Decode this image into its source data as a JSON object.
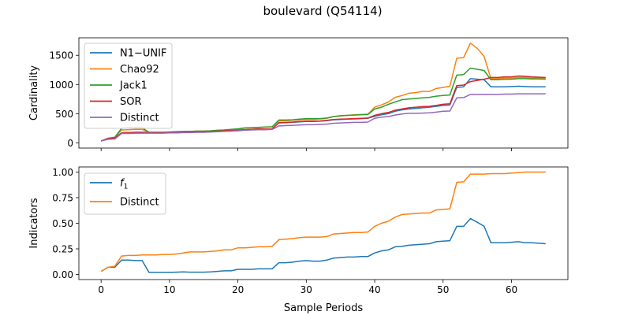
{
  "figure_title": "boulevard (Q54114)",
  "chart_data": [
    {
      "type": "line",
      "xlabel": "",
      "ylabel": "Cardinality",
      "xlim": [
        -3.25,
        68.25
      ],
      "ylim": [
        -90,
        1800
      ],
      "xticks": [
        0,
        10,
        20,
        30,
        40,
        50,
        60
      ],
      "xtick_labels_visible": false,
      "yticks": [
        0,
        500,
        1000,
        1500
      ],
      "ytick_labels": [
        "0",
        "500",
        "1000",
        "1500"
      ],
      "grid": false,
      "legend_position": "upper-left",
      "x": [
        0,
        1,
        2,
        3,
        4,
        5,
        6,
        7,
        8,
        9,
        10,
        11,
        12,
        13,
        14,
        15,
        16,
        17,
        18,
        19,
        20,
        21,
        22,
        23,
        24,
        25,
        26,
        27,
        28,
        29,
        30,
        31,
        32,
        33,
        34,
        35,
        36,
        37,
        38,
        39,
        40,
        41,
        42,
        43,
        44,
        45,
        46,
        47,
        48,
        49,
        50,
        51,
        52,
        53,
        54,
        55,
        56,
        57,
        58,
        59,
        60,
        61,
        62,
        63,
        64,
        65
      ],
      "series": [
        {
          "name": "N1−UNIF",
          "color": "#1f77b4",
          "values": [
            30,
            70,
            80,
            170,
            175,
            180,
            180,
            175,
            175,
            175,
            180,
            180,
            185,
            185,
            190,
            190,
            195,
            200,
            205,
            210,
            215,
            225,
            230,
            235,
            235,
            240,
            340,
            345,
            350,
            360,
            365,
            365,
            370,
            380,
            395,
            400,
            405,
            410,
            415,
            420,
            455,
            480,
            500,
            540,
            565,
            580,
            590,
            600,
            610,
            625,
            640,
            650,
            950,
            960,
            1100,
            1090,
            1080,
            960,
            960,
            960,
            965,
            970,
            965,
            960,
            960,
            960
          ]
        },
        {
          "name": "Chao92",
          "color": "#ff7f0e",
          "values": [
            30,
            80,
            90,
            220,
            225,
            230,
            230,
            180,
            180,
            180,
            180,
            190,
            190,
            195,
            200,
            200,
            205,
            210,
            215,
            220,
            230,
            250,
            255,
            260,
            270,
            275,
            375,
            380,
            385,
            395,
            400,
            400,
            410,
            420,
            450,
            460,
            470,
            480,
            485,
            490,
            610,
            650,
            700,
            780,
            810,
            850,
            860,
            880,
            880,
            930,
            950,
            970,
            1450,
            1460,
            1710,
            1620,
            1480,
            1100,
            1100,
            1110,
            1110,
            1120,
            1120,
            1110,
            1110,
            1100
          ]
        },
        {
          "name": "Jack1",
          "color": "#2ca02c",
          "values": [
            30,
            75,
            95,
            250,
            255,
            260,
            260,
            180,
            180,
            180,
            185,
            190,
            195,
            195,
            200,
            200,
            205,
            215,
            220,
            230,
            240,
            255,
            260,
            265,
            270,
            275,
            390,
            390,
            395,
            405,
            415,
            415,
            415,
            425,
            450,
            465,
            470,
            475,
            480,
            485,
            580,
            610,
            660,
            700,
            740,
            750,
            760,
            770,
            780,
            800,
            810,
            820,
            1160,
            1170,
            1280,
            1260,
            1240,
            1080,
            1080,
            1090,
            1090,
            1100,
            1100,
            1095,
            1095,
            1090
          ]
        },
        {
          "name": "SOR",
          "color": "#d62728",
          "values": [
            30,
            70,
            80,
            170,
            175,
            180,
            180,
            175,
            175,
            175,
            180,
            180,
            185,
            185,
            190,
            190,
            195,
            200,
            205,
            210,
            215,
            225,
            230,
            235,
            235,
            240,
            345,
            350,
            355,
            365,
            370,
            370,
            375,
            385,
            400,
            405,
            410,
            415,
            420,
            425,
            470,
            500,
            520,
            560,
            580,
            600,
            610,
            620,
            625,
            640,
            660,
            670,
            980,
            990,
            1050,
            1070,
            1090,
            1120,
            1120,
            1130,
            1130,
            1145,
            1140,
            1130,
            1125,
            1120
          ]
        },
        {
          "name": "Distinct",
          "color": "#9467bd",
          "values": [
            30,
            60,
            65,
            160,
            160,
            165,
            165,
            165,
            165,
            165,
            170,
            170,
            175,
            175,
            180,
            180,
            185,
            190,
            195,
            200,
            205,
            215,
            220,
            225,
            225,
            230,
            290,
            295,
            300,
            305,
            310,
            310,
            315,
            320,
            335,
            340,
            345,
            350,
            350,
            355,
            420,
            440,
            450,
            475,
            495,
            505,
            505,
            510,
            515,
            525,
            540,
            545,
            770,
            775,
            830,
            830,
            830,
            830,
            830,
            835,
            835,
            840,
            840,
            840,
            840,
            840
          ]
        }
      ]
    },
    {
      "type": "line",
      "xlabel": "Sample Periods",
      "ylabel": "Indicators",
      "xlim": [
        -3.25,
        68.25
      ],
      "ylim": [
        -0.05,
        1.05
      ],
      "xticks": [
        0,
        10,
        20,
        30,
        40,
        50,
        60
      ],
      "xtick_labels": [
        "0",
        "10",
        "20",
        "30",
        "40",
        "50",
        "60"
      ],
      "yticks": [
        0,
        0.25,
        0.5,
        0.75,
        1.0
      ],
      "ytick_labels": [
        "0.00",
        "0.25",
        "0.50",
        "0.75",
        "1.00"
      ],
      "grid": false,
      "legend_position": "upper-left",
      "x": [
        0,
        1,
        2,
        3,
        4,
        5,
        6,
        7,
        8,
        9,
        10,
        11,
        12,
        13,
        14,
        15,
        16,
        17,
        18,
        19,
        20,
        21,
        22,
        23,
        24,
        25,
        26,
        27,
        28,
        29,
        30,
        31,
        32,
        33,
        34,
        35,
        36,
        37,
        38,
        39,
        40,
        41,
        42,
        43,
        44,
        45,
        46,
        47,
        48,
        49,
        50,
        51,
        52,
        53,
        54,
        55,
        56,
        57,
        58,
        59,
        60,
        61,
        62,
        63,
        64,
        65
      ],
      "series": [
        {
          "name": "f1",
          "label_main": "f",
          "label_sub": "1",
          "color": "#1f77b4",
          "values": [
            0.03,
            0.07,
            0.07,
            0.14,
            0.14,
            0.135,
            0.135,
            0.02,
            0.02,
            0.02,
            0.02,
            0.022,
            0.025,
            0.022,
            0.022,
            0.022,
            0.025,
            0.03,
            0.035,
            0.035,
            0.05,
            0.05,
            0.05,
            0.055,
            0.055,
            0.055,
            0.115,
            0.115,
            0.12,
            0.13,
            0.135,
            0.13,
            0.13,
            0.14,
            0.16,
            0.165,
            0.17,
            0.17,
            0.175,
            0.175,
            0.21,
            0.23,
            0.24,
            0.27,
            0.275,
            0.285,
            0.29,
            0.295,
            0.3,
            0.32,
            0.325,
            0.33,
            0.47,
            0.47,
            0.545,
            0.51,
            0.47,
            0.31,
            0.31,
            0.31,
            0.315,
            0.32,
            0.31,
            0.31,
            0.305,
            0.3
          ]
        },
        {
          "name": "Distinct",
          "color": "#ff7f0e",
          "values": [
            0.03,
            0.07,
            0.08,
            0.18,
            0.185,
            0.185,
            0.19,
            0.19,
            0.19,
            0.195,
            0.195,
            0.2,
            0.21,
            0.22,
            0.22,
            0.22,
            0.225,
            0.23,
            0.24,
            0.24,
            0.26,
            0.26,
            0.265,
            0.27,
            0.27,
            0.275,
            0.34,
            0.345,
            0.35,
            0.36,
            0.365,
            0.365,
            0.365,
            0.37,
            0.395,
            0.4,
            0.405,
            0.41,
            0.41,
            0.415,
            0.47,
            0.5,
            0.52,
            0.56,
            0.585,
            0.59,
            0.595,
            0.6,
            0.6,
            0.63,
            0.635,
            0.64,
            0.9,
            0.905,
            0.98,
            0.98,
            0.98,
            0.985,
            0.985,
            0.985,
            0.99,
            0.995,
            1.0,
            1.0,
            1.0,
            1.0
          ]
        }
      ]
    }
  ]
}
